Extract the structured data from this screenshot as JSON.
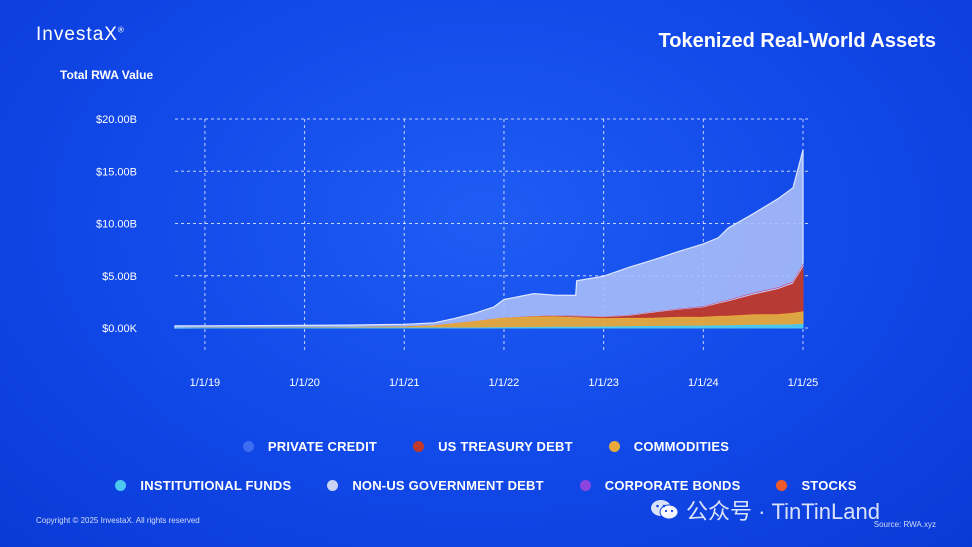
{
  "brand": "InvestaX",
  "brand_mark": "®",
  "title": "Tokenized Real-World Assets",
  "y_axis_title": "Total RWA Value",
  "copyright": "Copyright © 2025 InvestaX. All rights reserved",
  "source": "Source: RWA.xyz",
  "watermark": "公众号 · TinTinLand",
  "watermark_icon": "wechat-icon",
  "colors": {
    "private_credit": "#3d6df0",
    "private_credit_fill": "#a9bdf8",
    "us_treasury_debt": "#c0392b",
    "commodities": "#e8a93a",
    "institutional_funds": "#4cc9f0",
    "non_us_government_debt": "#c9d4f5",
    "corporate_bonds": "#8e44e0",
    "stocks": "#f05a28"
  },
  "chart_data": {
    "type": "area",
    "title": "Tokenized Real-World Assets",
    "ylabel": "Total RWA Value",
    "xlabel": "",
    "y_ticks": [
      "$0.00K",
      "$5.00B",
      "$10.00B",
      "$15.00B",
      "$20.00B"
    ],
    "y_tick_values": [
      0,
      5,
      10,
      15,
      20
    ],
    "x_ticks": [
      "1/1/19",
      "1/1/20",
      "1/1/21",
      "1/1/22",
      "1/1/23",
      "1/1/24",
      "1/1/25"
    ],
    "x_tick_values": [
      2019,
      2020,
      2021,
      2022,
      2023,
      2024,
      2025
    ],
    "ylim": [
      0,
      20
    ],
    "xlim": [
      2018.7,
      2025.05
    ],
    "grid": true,
    "stacked": true,
    "legend_position": "bottom",
    "x": [
      2018.7,
      2019,
      2019.5,
      2020,
      2020.5,
      2021,
      2021.3,
      2021.5,
      2021.7,
      2021.9,
      2022,
      2022.3,
      2022.5,
      2022.72,
      2022.73,
      2023,
      2023.25,
      2023.5,
      2023.75,
      2024,
      2024.15,
      2024.25,
      2024.5,
      2024.75,
      2024.9,
      2025
    ],
    "series": [
      {
        "name": "INSTITUTIONAL FUNDS",
        "values": [
          0,
          0,
          0,
          0,
          0,
          0,
          0,
          0,
          0,
          0.02,
          0.03,
          0.05,
          0.07,
          0.08,
          0.08,
          0.1,
          0.12,
          0.14,
          0.16,
          0.18,
          0.2,
          0.22,
          0.25,
          0.28,
          0.3,
          0.35
        ]
      },
      {
        "name": "COMMODITIES",
        "values": [
          0,
          0.01,
          0.02,
          0.03,
          0.05,
          0.1,
          0.2,
          0.4,
          0.6,
          0.8,
          0.9,
          1.0,
          1.0,
          0.9,
          0.9,
          0.8,
          0.8,
          0.8,
          0.85,
          0.85,
          0.9,
          0.9,
          1.0,
          1.0,
          1.1,
          1.2
        ]
      },
      {
        "name": "US TREASURY DEBT",
        "values": [
          0,
          0,
          0,
          0,
          0,
          0,
          0,
          0,
          0,
          0,
          0,
          0.02,
          0.05,
          0.08,
          0.08,
          0.1,
          0.2,
          0.5,
          0.7,
          0.9,
          1.2,
          1.4,
          1.9,
          2.4,
          2.8,
          4.2
        ]
      },
      {
        "name": "NON-US GOVERNMENT DEBT",
        "values": [
          0,
          0,
          0,
          0,
          0,
          0,
          0,
          0,
          0,
          0,
          0,
          0.01,
          0.02,
          0.03,
          0.03,
          0.03,
          0.04,
          0.05,
          0.05,
          0.06,
          0.07,
          0.08,
          0.1,
          0.1,
          0.12,
          0.15
        ]
      },
      {
        "name": "CORPORATE BONDS",
        "values": [
          0,
          0,
          0,
          0,
          0,
          0,
          0,
          0,
          0,
          0,
          0,
          0.01,
          0.01,
          0.02,
          0.02,
          0.02,
          0.03,
          0.03,
          0.03,
          0.04,
          0.04,
          0.05,
          0.05,
          0.06,
          0.06,
          0.08
        ]
      },
      {
        "name": "STOCKS",
        "values": [
          0,
          0,
          0,
          0,
          0,
          0,
          0,
          0,
          0,
          0,
          0,
          0,
          0,
          0.01,
          0.01,
          0.01,
          0.01,
          0.01,
          0.02,
          0.02,
          0.02,
          0.02,
          0.03,
          0.03,
          0.04,
          0.05
        ]
      },
      {
        "name": "PRIVATE CREDIT",
        "values": [
          0.2,
          0.2,
          0.21,
          0.22,
          0.24,
          0.25,
          0.3,
          0.5,
          0.8,
          1.2,
          1.8,
          2.2,
          2.0,
          2.0,
          3.4,
          3.9,
          4.6,
          5.0,
          5.5,
          6.0,
          6.2,
          6.9,
          7.6,
          8.5,
          9.0,
          11.0
        ]
      }
    ]
  },
  "legend": {
    "row1": [
      {
        "label": "PRIVATE CREDIT",
        "color": "#3d6df0"
      },
      {
        "label": "US TREASURY DEBT",
        "color": "#c0392b"
      },
      {
        "label": "COMMODITIES",
        "color": "#e8a93a"
      }
    ],
    "row2": [
      {
        "label": "INSTITUTIONAL FUNDS",
        "color": "#4cc9f0"
      },
      {
        "label": "NON-US GOVERNMENT DEBT",
        "color": "#c9d4f5"
      },
      {
        "label": "CORPORATE BONDS",
        "color": "#8e44e0"
      },
      {
        "label": "STOCKS",
        "color": "#f05a28"
      }
    ]
  }
}
